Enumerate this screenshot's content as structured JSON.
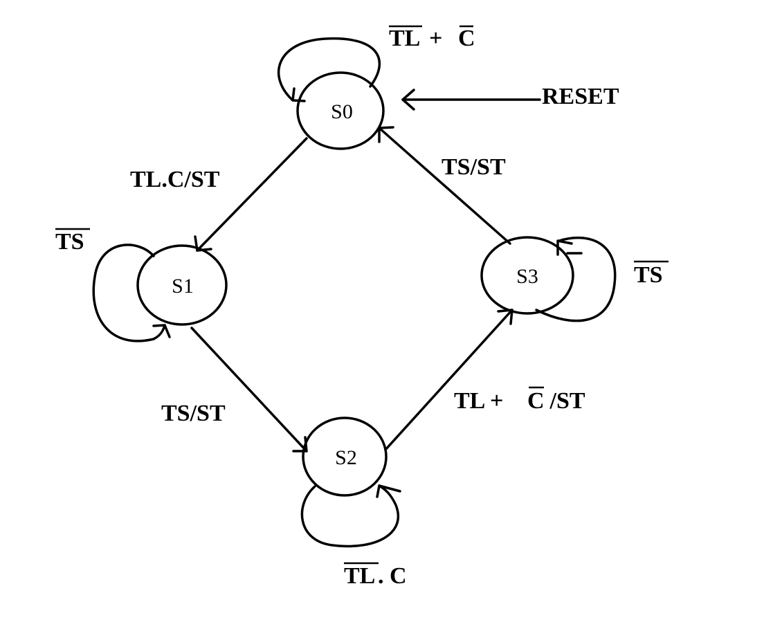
{
  "states": {
    "s0": "S0",
    "s1": "S1",
    "s2": "S2",
    "s3": "S3"
  },
  "reset": "RESET",
  "transitions": {
    "s0_self": {
      "a": "TL",
      "plus": "+",
      "b": "C"
    },
    "s0_to_s1": "TL.C/ST",
    "s1_self": "TS",
    "s1_to_s2": "TS/ST",
    "s2_self": {
      "a": "TL",
      "b": ". C"
    },
    "s2_to_s3": {
      "a": "TL + ",
      "b": "C",
      "c": " /ST"
    },
    "s3_self": "TS",
    "s3_to_s0": "TS/ST"
  }
}
